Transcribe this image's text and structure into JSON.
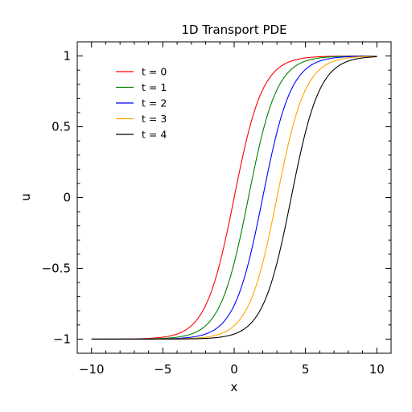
{
  "chart_data": {
    "type": "line",
    "title": "1D Transport PDE",
    "xlabel": "x",
    "ylabel": "u",
    "xlim": [
      -11,
      11
    ],
    "ylim": [
      -1.1,
      1.1
    ],
    "xticks": [
      -10,
      -5,
      0,
      5,
      10
    ],
    "xtick_labels": [
      "−10",
      "−5",
      "0",
      "5",
      "10"
    ],
    "yticks": [
      -1,
      -0.5,
      0,
      0.5,
      1
    ],
    "ytick_labels": [
      "−1",
      "−0.5",
      "0",
      "0.5",
      "1"
    ],
    "grid": false,
    "legend_position": "top-left",
    "x_range": [
      -10,
      10
    ],
    "series": [
      {
        "name": "t = 0",
        "color": "#ff0000",
        "shift": 0
      },
      {
        "name": "t = 1",
        "color": "#008000",
        "shift": 1
      },
      {
        "name": "t = 2",
        "color": "#0000ff",
        "shift": 2
      },
      {
        "name": "t = 3",
        "color": "#ffa500",
        "shift": 3
      },
      {
        "name": "t = 4",
        "color": "#000000",
        "shift": 4
      }
    ],
    "formula": "u(x, t) = tanh((x - t) / 2)"
  }
}
